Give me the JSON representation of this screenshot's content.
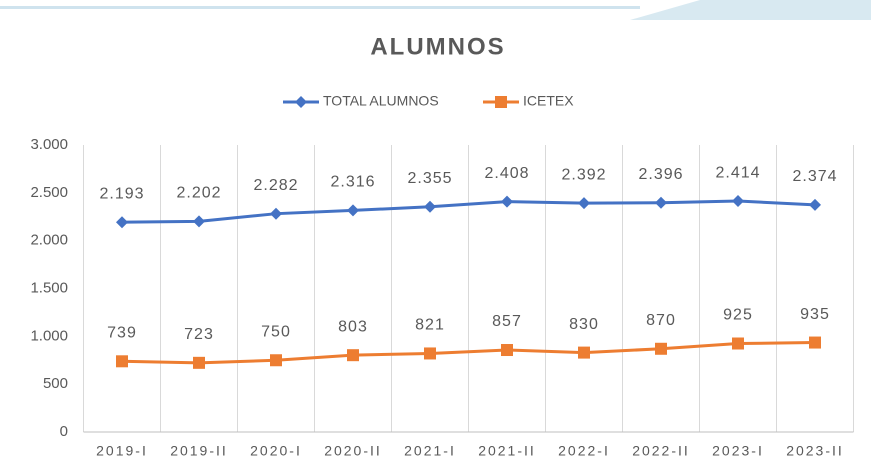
{
  "chart_data": {
    "type": "line",
    "title": "ALUMNOS",
    "categories": [
      "2019-I",
      "2019-II",
      "2020-I",
      "2020-II",
      "2021-I",
      "2021-II",
      "2022-I",
      "2022-II",
      "2023-I",
      "2023-II"
    ],
    "series": [
      {
        "name": "TOTAL ALUMNOS",
        "color": "#4472c4",
        "values": [
          2193,
          2202,
          2282,
          2316,
          2355,
          2408,
          2392,
          2396,
          2414,
          2374
        ],
        "value_labels": [
          "2.193",
          "2.202",
          "2.282",
          "2.316",
          "2.355",
          "2.408",
          "2.392",
          "2.396",
          "2.414",
          "2.374"
        ],
        "marker": "diamond"
      },
      {
        "name": "ICETEX",
        "color": "#ed7d31",
        "values": [
          739,
          723,
          750,
          803,
          821,
          857,
          830,
          870,
          925,
          935
        ],
        "marker": "square"
      }
    ],
    "ylim": [
      0,
      3000
    ],
    "yticks": [
      0,
      500,
      {
        "value": 1000,
        "label": "1.000"
      },
      {
        "value": 1500,
        "label": "1.500"
      },
      {
        "value": 2000,
        "label": "2.000"
      },
      {
        "value": 2500,
        "label": "2.500"
      },
      {
        "value": 3000,
        "label": "3.000"
      }
    ],
    "grid": "x",
    "legend": "top"
  }
}
